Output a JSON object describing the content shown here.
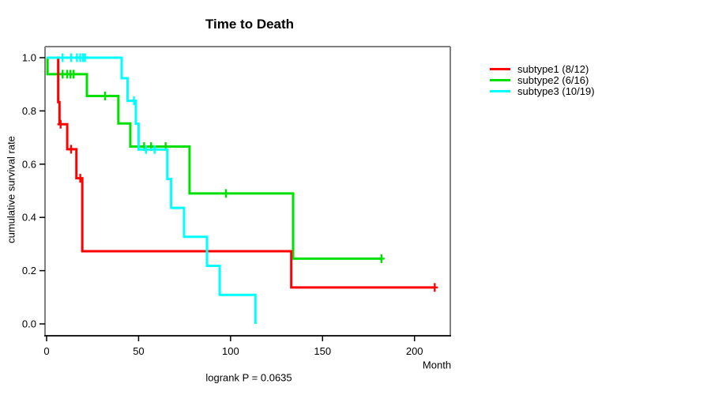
{
  "chart_data": {
    "type": "line",
    "style": "kaplan-meier-step",
    "title": "Time to Death",
    "xlabel": "Month",
    "ylabel": "cumulative survival rate",
    "annotation": "logrank P = 0.0635",
    "xlim": [
      0,
      219.5
    ],
    "ylim": [
      0.0,
      1.0
    ],
    "x_ticks": [
      0,
      50,
      100,
      150,
      200
    ],
    "y_ticks": [
      0.0,
      0.2,
      0.4,
      0.6,
      0.8,
      1.0
    ],
    "grid": false,
    "legend_position": "right-outside",
    "series": [
      {
        "name": "subtype1",
        "label": "subtype1 (8/12)",
        "events": "8/12",
        "color": "#ff0000",
        "steps": [
          [
            0,
            1.0
          ],
          [
            6.3,
            0.833
          ],
          [
            7.0,
            0.75
          ],
          [
            11.2,
            0.656
          ],
          [
            16.2,
            0.547
          ],
          [
            19.4,
            0.273
          ],
          [
            133,
            0.137
          ]
        ],
        "end_month": 211,
        "censor_marks": [
          [
            7.6,
            0.75
          ],
          [
            13.3,
            0.656
          ],
          [
            18.3,
            0.547
          ],
          [
            211,
            0.137
          ]
        ]
      },
      {
        "name": "subtype2",
        "label": "subtype2 (6/16)",
        "events": "6/16",
        "color": "#00e000",
        "steps": [
          [
            0,
            1.0
          ],
          [
            0.5,
            0.938
          ],
          [
            21.9,
            0.856
          ],
          [
            39.0,
            0.753
          ],
          [
            45.5,
            0.666
          ],
          [
            77.7,
            0.49
          ],
          [
            134,
            0.245
          ]
        ],
        "end_month": 182,
        "censor_marks": [
          [
            8.7,
            0.938
          ],
          [
            11.2,
            0.938
          ],
          [
            13.0,
            0.938
          ],
          [
            14.7,
            0.938
          ],
          [
            31.8,
            0.856
          ],
          [
            53.0,
            0.666
          ],
          [
            56.8,
            0.666
          ],
          [
            64.7,
            0.666
          ],
          [
            97.5,
            0.49
          ],
          [
            182,
            0.245
          ]
        ]
      },
      {
        "name": "subtype3",
        "label": "subtype3 (10/19)",
        "events": "10/19",
        "color": "#00ffff",
        "steps": [
          [
            0,
            1.0
          ],
          [
            40.8,
            0.923
          ],
          [
            44.0,
            0.838
          ],
          [
            48.5,
            0.752
          ],
          [
            50.0,
            0.655
          ],
          [
            65.6,
            0.544
          ],
          [
            67.7,
            0.436
          ],
          [
            74.7,
            0.327
          ],
          [
            87.2,
            0.218
          ],
          [
            94.1,
            0.109
          ],
          [
            113.5,
            0.0
          ]
        ],
        "end_month": 113.5,
        "censor_marks": [
          [
            8.7,
            1.0
          ],
          [
            13.3,
            1.0
          ],
          [
            16.5,
            1.0
          ],
          [
            18.3,
            1.0
          ],
          [
            19.8,
            1.0
          ],
          [
            20.9,
            1.0
          ],
          [
            47.5,
            0.838
          ],
          [
            54.0,
            0.655
          ],
          [
            58.7,
            0.655
          ]
        ]
      }
    ],
    "colors": {
      "box_border": "#7f7f7f",
      "axis_line": "#1f1f1f",
      "tick": "#000000",
      "text": "#000000",
      "background": "#ffffff"
    }
  }
}
